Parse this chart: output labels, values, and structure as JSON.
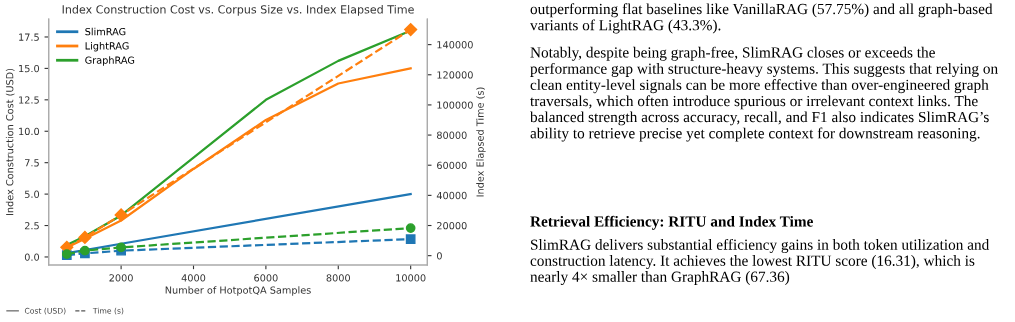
{
  "chart_data": {
    "type": "line",
    "title": "Index Construction Cost vs. Corpus Size vs. Index Elapsed Time",
    "xlabel": "Number of HotpotQA Samples",
    "ylabel": "Index Construction Cost (USD)",
    "y2label": "Index Elapsed Time (s)",
    "xlim": [
      0,
      10460
    ],
    "xticks": [
      2000,
      4000,
      6000,
      8000,
      10000
    ],
    "ylim": [
      -0.64,
      18.93
    ],
    "yticks": [
      {
        "value": 0,
        "label": "0.0"
      },
      {
        "value": 2.5,
        "label": "2.5"
      },
      {
        "value": 5,
        "label": "5.0"
      },
      {
        "value": 7.5,
        "label": "7.5"
      },
      {
        "value": 10,
        "label": "10.0"
      },
      {
        "value": 12.5,
        "label": "12.5"
      },
      {
        "value": 15,
        "label": "15.0"
      },
      {
        "value": 17.5,
        "label": "17.5"
      }
    ],
    "y2lim": [
      -6200,
      157000
    ],
    "y2ticks": [
      0,
      20000,
      40000,
      60000,
      80000,
      100000,
      120000,
      140000
    ],
    "grid": false,
    "legend": "top left",
    "series": [
      {
        "name": "SlimRAG",
        "color": "#1f77b4",
        "line_style": "solid",
        "marker": "none",
        "x": [
          500,
          1000,
          2000,
          10000
        ],
        "values": [
          0.3,
          0.55,
          1.05,
          5.0
        ]
      },
      {
        "name": "LightRAG",
        "color": "#ff7f0e",
        "line_style": "solid",
        "marker": "none",
        "x": [
          500,
          1000,
          2000,
          4000,
          6000,
          8000,
          10000
        ],
        "values": [
          0.75,
          1.45,
          2.9,
          7.0,
          10.9,
          13.8,
          15.0
        ]
      },
      {
        "name": "GraphRAG",
        "color": "#2ca02c",
        "line_style": "solid",
        "marker": "none",
        "x": [
          500,
          1000,
          2000,
          4000,
          6000,
          8000,
          10000
        ],
        "values": [
          0.95,
          1.65,
          3.3,
          7.9,
          12.5,
          15.6,
          18.0
        ]
      },
      {
        "color": "#1f77b4",
        "axis": "y2",
        "line_style": "dashed",
        "marker": "square",
        "x": [
          500,
          1000,
          2000,
          10000
        ],
        "values": [
          400,
          1500,
          3300,
          11000
        ]
      },
      {
        "color": "#ff7f0e",
        "axis": "y2",
        "line_style": "dashed",
        "marker": "diamond",
        "x": [
          500,
          1000,
          2000,
          10000
        ],
        "values": [
          5500,
          12100,
          27000,
          150000
        ]
      },
      {
        "color": "#2ca02c",
        "axis": "y2",
        "line_style": "dashed",
        "marker": "circle",
        "x": [
          500,
          1000,
          2000,
          10000
        ],
        "values": [
          1000,
          3300,
          5500,
          18300
        ]
      }
    ],
    "annotations": [
      "Cost (USD)",
      "Time (s)",
      "outperforming flat baselines like VanillaRAG (57.75%) and all graph-based variants of LightRAG (43.3%).",
      "Notably, despite being graph-free, SlimRAG closes or exceeds the performance gap with structure-heavy systems. This suggests that relying on clean entity-level signals can be more effective than over-engineered graph traversals, which often introduce spurious or irrelevant context links. The balanced strength across accuracy, recall, and F1 also indicates SlimRAG’s ability to retrieve precise yet complete context for downstream reasoning.",
      "Retrieval Efficiency: RITU and Index Time",
      "SlimRAG delivers substantial efficiency gains in both token utilization and construction latency. It achieves the lowest RITU score (16.31), which is nearly 4× smaller than GraphRAG (67.36)"
    ]
  }
}
